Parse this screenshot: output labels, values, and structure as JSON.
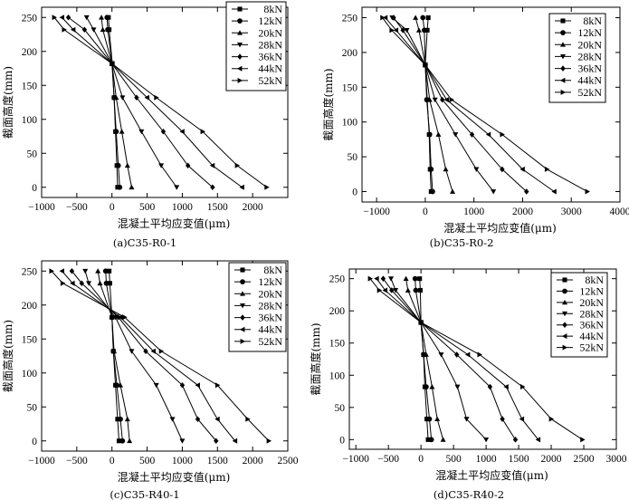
{
  "legend_labels": [
    "8kN",
    "12kN",
    "20kN",
    "28kN",
    "36kN",
    "44kN",
    "52kN"
  ],
  "chart_data": [
    {
      "type": "line",
      "caption": "(a)C35-R0-1",
      "xlabel": "混凝土平均应变值(μm)",
      "ylabel": "截面高度(mm)",
      "xlim": [
        -1000,
        2500
      ],
      "ylim": [
        -15,
        265
      ],
      "xticks": [
        -1000,
        -500,
        0,
        500,
        1000,
        1500,
        2000
      ],
      "yticks": [
        0,
        50,
        100,
        150,
        200,
        250
      ],
      "y": [
        0,
        32,
        82,
        132,
        182,
        232,
        250
      ],
      "series": [
        {
          "name": "8kN",
          "marker": "square",
          "x": [
            80,
            70,
            50,
            30,
            5,
            -40,
            -50
          ]
        },
        {
          "name": "12kN",
          "marker": "circle",
          "x": [
            110,
            90,
            60,
            30,
            0,
            -60,
            -70
          ]
        },
        {
          "name": "20kN",
          "marker": "triangle-up",
          "x": [
            280,
            220,
            140,
            60,
            0,
            -130,
            -150
          ]
        },
        {
          "name": "28kN",
          "marker": "triangle-down",
          "x": [
            920,
            700,
            420,
            150,
            0,
            -260,
            -360
          ]
        },
        {
          "name": "36kN",
          "marker": "diamond",
          "x": [
            1430,
            1080,
            730,
            350,
            0,
            -390,
            -620
          ]
        },
        {
          "name": "44kN",
          "marker": "triangle-left",
          "x": [
            1850,
            1430,
            1000,
            500,
            0,
            -550,
            -710
          ]
        },
        {
          "name": "52kN",
          "marker": "triangle-right",
          "x": [
            2200,
            1780,
            1290,
            630,
            0,
            -680,
            -820
          ]
        }
      ]
    },
    {
      "type": "line",
      "caption": "(b)C35-R0-2",
      "xlabel": "混凝土平均应变值(μm)",
      "ylabel": "截面高度(mm)",
      "xlim": [
        -1300,
        4000
      ],
      "ylim": [
        -15,
        265
      ],
      "xticks": [
        -1000,
        0,
        1000,
        2000,
        3000,
        4000
      ],
      "yticks": [
        0,
        50,
        100,
        150,
        200,
        250
      ],
      "y": [
        0,
        32,
        82,
        132,
        182,
        232,
        250
      ],
      "series": [
        {
          "name": "8kN",
          "marker": "square",
          "x": [
            120,
            100,
            80,
            40,
            0,
            40,
            60
          ]
        },
        {
          "name": "12kN",
          "marker": "circle",
          "x": [
            150,
            120,
            90,
            30,
            0,
            -20,
            -50
          ]
        },
        {
          "name": "20kN",
          "marker": "triangle-up",
          "x": [
            560,
            420,
            270,
            90,
            0,
            -130,
            -200
          ]
        },
        {
          "name": "28kN",
          "marker": "triangle-down",
          "x": [
            1400,
            1050,
            620,
            200,
            0,
            -380,
            -680
          ]
        },
        {
          "name": "36kN",
          "marker": "diamond",
          "x": [
            2080,
            1580,
            960,
            350,
            0,
            -460,
            -650
          ]
        },
        {
          "name": "44kN",
          "marker": "triangle-left",
          "x": [
            2650,
            2000,
            1300,
            440,
            0,
            -600,
            -820
          ]
        },
        {
          "name": "52kN",
          "marker": "triangle-right",
          "x": [
            3330,
            2500,
            1580,
            540,
            0,
            -690,
            -880
          ]
        }
      ]
    },
    {
      "type": "line",
      "caption": "(c)C35-R40-1",
      "xlabel": "混凝土平均应变值(μm)",
      "ylabel": "截面高度(mm)",
      "xlim": [
        -1000,
        2500
      ],
      "ylim": [
        -15,
        265
      ],
      "xticks": [
        -1000,
        -500,
        0,
        500,
        1000,
        1500,
        2000,
        2500
      ],
      "yticks": [
        0,
        50,
        100,
        150,
        200,
        250
      ],
      "y": [
        0,
        32,
        82,
        132,
        182,
        232,
        250
      ],
      "series": [
        {
          "name": "8kN",
          "marker": "square",
          "x": [
            100,
            80,
            50,
            20,
            0,
            -30,
            -40
          ]
        },
        {
          "name": "12kN",
          "marker": "circle",
          "x": [
            150,
            120,
            70,
            20,
            0,
            -80,
            -90
          ]
        },
        {
          "name": "20kN",
          "marker": "triangle-up",
          "x": [
            250,
            220,
            120,
            30,
            0,
            -170,
            -200
          ]
        },
        {
          "name": "28kN",
          "marker": "triangle-down",
          "x": [
            1000,
            860,
            630,
            280,
            50,
            -330,
            -380
          ]
        },
        {
          "name": "36kN",
          "marker": "diamond",
          "x": [
            1480,
            1220,
            1000,
            480,
            90,
            -430,
            -570
          ]
        },
        {
          "name": "44kN",
          "marker": "triangle-left",
          "x": [
            1750,
            1500,
            1220,
            590,
            120,
            -560,
            -710
          ]
        },
        {
          "name": "52kN",
          "marker": "triangle-right",
          "x": [
            2230,
            1930,
            1500,
            700,
            180,
            -700,
            -860
          ]
        }
      ]
    },
    {
      "type": "line",
      "caption": "(d)C35-R40-2",
      "xlabel": "混凝土平均应变值(μm)",
      "ylabel": "截面高度(mm)",
      "xlim": [
        -1100,
        3000
      ],
      "ylim": [
        -15,
        265
      ],
      "xticks": [
        -1000,
        -500,
        0,
        500,
        1000,
        1500,
        2000,
        2500,
        3000
      ],
      "yticks": [
        0,
        50,
        100,
        150,
        200,
        250
      ],
      "y": [
        0,
        32,
        82,
        132,
        182,
        232,
        250
      ],
      "series": [
        {
          "name": "8kN",
          "marker": "square",
          "x": [
            110,
            90,
            60,
            40,
            0,
            -10,
            -20
          ]
        },
        {
          "name": "12kN",
          "marker": "circle",
          "x": [
            160,
            130,
            80,
            40,
            0,
            -80,
            -90
          ]
        },
        {
          "name": "20kN",
          "marker": "triangle-up",
          "x": [
            340,
            250,
            170,
            80,
            0,
            -200,
            -230
          ]
        },
        {
          "name": "28kN",
          "marker": "triangle-down",
          "x": [
            1000,
            700,
            560,
            310,
            0,
            -390,
            -460
          ]
        },
        {
          "name": "36kN",
          "marker": "diamond",
          "x": [
            1450,
            1250,
            1060,
            550,
            0,
            -450,
            -580
          ]
        },
        {
          "name": "44kN",
          "marker": "triangle-left",
          "x": [
            1800,
            1550,
            1310,
            720,
            0,
            -550,
            -680
          ]
        },
        {
          "name": "52kN",
          "marker": "triangle-right",
          "x": [
            2480,
            2000,
            1560,
            900,
            0,
            -640,
            -780
          ]
        }
      ]
    }
  ]
}
